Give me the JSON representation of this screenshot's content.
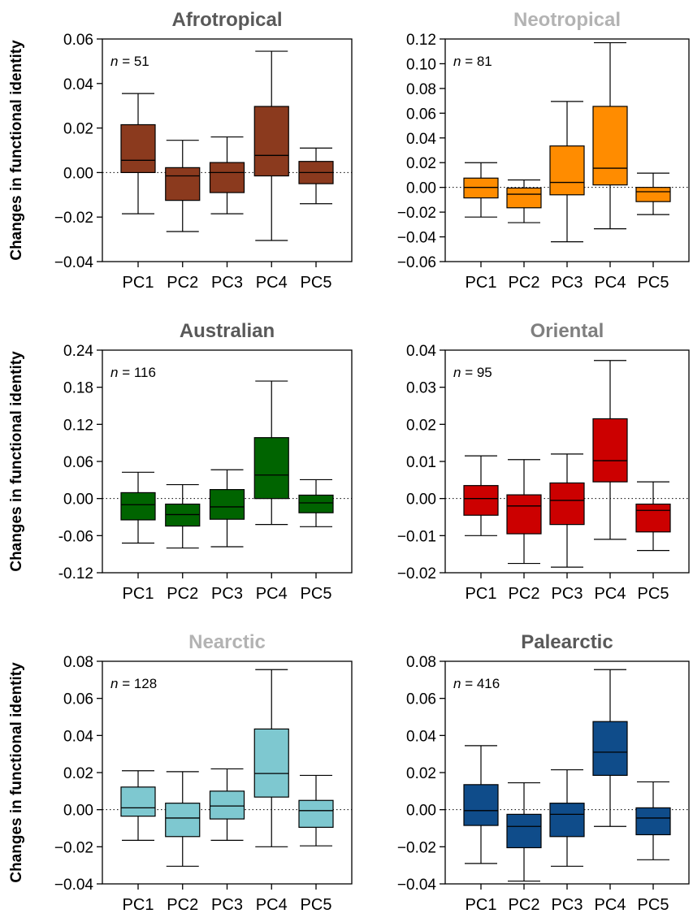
{
  "y_axis_label": "Changes in functional identity",
  "chart_data": [
    {
      "type": "boxplot",
      "title": "Afrotropical",
      "title_color": "#595959",
      "box_color": "#8B3A1E",
      "n_label": "51",
      "categories": [
        "PC1",
        "PC2",
        "PC3",
        "PC4",
        "PC5"
      ],
      "ylim": [
        -0.04,
        0.06
      ],
      "yticks": [
        -0.04,
        -0.02,
        0.0,
        0.02,
        0.04,
        0.06
      ],
      "ytick_labels": [
        "−0.04",
        "−0.02",
        "0.00",
        "0.02",
        "0.04",
        "0.06"
      ],
      "boxes": [
        {
          "category": "PC1",
          "min": -0.0185,
          "q1": 0.0,
          "median": 0.0055,
          "q3": 0.0215,
          "max": 0.0355
        },
        {
          "category": "PC2",
          "min": -0.0265,
          "q1": -0.0125,
          "median": -0.0015,
          "q3": 0.0022,
          "max": 0.0145
        },
        {
          "category": "PC3",
          "min": -0.0185,
          "q1": -0.009,
          "median": 0.0,
          "q3": 0.0045,
          "max": 0.016
        },
        {
          "category": "PC4",
          "min": -0.0305,
          "q1": -0.0015,
          "median": 0.0077,
          "q3": 0.0297,
          "max": 0.0545
        },
        {
          "category": "PC5",
          "min": -0.014,
          "q1": -0.005,
          "median": 0.0,
          "q3": 0.005,
          "max": 0.011
        }
      ]
    },
    {
      "type": "boxplot",
      "title": "Neotropical",
      "title_color": "#b3b3b3",
      "box_color": "#FF8C00",
      "n_label": "81",
      "categories": [
        "PC1",
        "PC2",
        "PC3",
        "PC4",
        "PC5"
      ],
      "ylim": [
        -0.06,
        0.12
      ],
      "yticks": [
        -0.06,
        -0.04,
        -0.02,
        0.0,
        0.02,
        0.04,
        0.06,
        0.08,
        0.1,
        0.12
      ],
      "ytick_labels": [
        "−0.06",
        "−0.04",
        "−0.02",
        "0.00",
        "0.02",
        "0.04",
        "0.06",
        "0.08",
        "0.10",
        "0.12"
      ],
      "boxes": [
        {
          "category": "PC1",
          "min": -0.024,
          "q1": -0.0085,
          "median": 0.0,
          "q3": 0.0075,
          "max": 0.02
        },
        {
          "category": "PC2",
          "min": -0.0285,
          "q1": -0.0165,
          "median": -0.0055,
          "q3": -0.0005,
          "max": 0.006
        },
        {
          "category": "PC3",
          "min": -0.044,
          "q1": -0.006,
          "median": 0.004,
          "q3": 0.0335,
          "max": 0.0695
        },
        {
          "category": "PC4",
          "min": -0.0335,
          "q1": 0.002,
          "median": 0.0155,
          "q3": 0.0655,
          "max": 0.117
        },
        {
          "category": "PC5",
          "min": -0.022,
          "q1": -0.0115,
          "median": -0.0035,
          "q3": 0.0,
          "max": 0.0115
        }
      ]
    },
    {
      "type": "boxplot",
      "title": "Australian",
      "title_color": "#595959",
      "box_color": "#006400",
      "n_label": "116",
      "categories": [
        "PC1",
        "PC2",
        "PC3",
        "PC4",
        "PC5"
      ],
      "ylim": [
        -0.12,
        0.24
      ],
      "yticks": [
        -0.12,
        -0.06,
        0.0,
        0.06,
        0.12,
        0.18,
        0.24
      ],
      "ytick_labels": [
        "-0.12",
        "-0.06",
        "0.00",
        "0.06",
        "0.12",
        "0.18",
        "0.24"
      ],
      "boxes": [
        {
          "category": "PC1",
          "min": -0.072,
          "q1": -0.0345,
          "median": -0.01,
          "q3": 0.0095,
          "max": 0.0425
        },
        {
          "category": "PC2",
          "min": -0.08,
          "q1": -0.0445,
          "median": -0.026,
          "q3": -0.009,
          "max": 0.0225
        },
        {
          "category": "PC3",
          "min": -0.078,
          "q1": -0.0335,
          "median": -0.0135,
          "q3": 0.0145,
          "max": 0.0465
        },
        {
          "category": "PC4",
          "min": -0.042,
          "q1": 0.0,
          "median": 0.038,
          "q3": 0.0985,
          "max": 0.19
        },
        {
          "category": "PC5",
          "min": -0.0455,
          "q1": -0.023,
          "median": -0.007,
          "q3": 0.0055,
          "max": 0.0305
        }
      ]
    },
    {
      "type": "boxplot",
      "title": "Oriental",
      "title_color": "#7f7f7f",
      "box_color": "#CC0000",
      "n_label": "95",
      "categories": [
        "PC1",
        "PC2",
        "PC3",
        "PC4",
        "PC5"
      ],
      "ylim": [
        -0.02,
        0.04
      ],
      "yticks": [
        -0.02,
        -0.01,
        0.0,
        0.01,
        0.02,
        0.03,
        0.04
      ],
      "ytick_labels": [
        "−0.02",
        "−0.01",
        "0.00",
        "0.01",
        "0.02",
        "0.03",
        "0.04"
      ],
      "boxes": [
        {
          "category": "PC1",
          "min": -0.01,
          "q1": -0.0045,
          "median": 0.0,
          "q3": 0.0035,
          "max": 0.0115
        },
        {
          "category": "PC2",
          "min": -0.0175,
          "q1": -0.0095,
          "median": -0.002,
          "q3": 0.001,
          "max": 0.0105
        },
        {
          "category": "PC3",
          "min": -0.0185,
          "q1": -0.007,
          "median": -0.0005,
          "q3": 0.0042,
          "max": 0.012
        },
        {
          "category": "PC4",
          "min": -0.011,
          "q1": 0.0045,
          "median": 0.0102,
          "q3": 0.0215,
          "max": 0.0372
        },
        {
          "category": "PC5",
          "min": -0.014,
          "q1": -0.009,
          "median": -0.0032,
          "q3": -0.0015,
          "max": 0.0045
        }
      ]
    },
    {
      "type": "boxplot",
      "title": "Nearctic",
      "title_color": "#b3b3b3",
      "box_color": "#7EC8D0",
      "n_label": "128",
      "categories": [
        "PC1",
        "PC2",
        "PC3",
        "PC4",
        "PC5"
      ],
      "ylim": [
        -0.04,
        0.08
      ],
      "yticks": [
        -0.04,
        -0.02,
        0.0,
        0.02,
        0.04,
        0.06,
        0.08
      ],
      "ytick_labels": [
        "−0.04",
        "−0.02",
        "0.00",
        "0.02",
        "0.04",
        "0.06",
        "0.08"
      ],
      "boxes": [
        {
          "category": "PC1",
          "min": -0.0165,
          "q1": -0.0035,
          "median": 0.001,
          "q3": 0.0122,
          "max": 0.021
        },
        {
          "category": "PC2",
          "min": -0.0305,
          "q1": -0.0145,
          "median": -0.0045,
          "q3": 0.0035,
          "max": 0.0205
        },
        {
          "category": "PC3",
          "min": -0.0165,
          "q1": -0.005,
          "median": 0.002,
          "q3": 0.01,
          "max": 0.022
        },
        {
          "category": "PC4",
          "min": -0.02,
          "q1": 0.0068,
          "median": 0.0195,
          "q3": 0.0435,
          "max": 0.0755
        },
        {
          "category": "PC5",
          "min": -0.0195,
          "q1": -0.0095,
          "median": -0.0005,
          "q3": 0.005,
          "max": 0.0185
        }
      ]
    },
    {
      "type": "boxplot",
      "title": "Palearctic",
      "title_color": "#595959",
      "box_color": "#0F4C8A",
      "n_label": "416",
      "categories": [
        "PC1",
        "PC2",
        "PC3",
        "PC4",
        "PC5"
      ],
      "ylim": [
        -0.04,
        0.08
      ],
      "yticks": [
        -0.04,
        -0.02,
        0.0,
        0.02,
        0.04,
        0.06,
        0.08
      ],
      "ytick_labels": [
        "−0.04",
        "−0.02",
        "0.00",
        "0.02",
        "0.04",
        "0.06",
        "0.08"
      ],
      "boxes": [
        {
          "category": "PC1",
          "min": -0.029,
          "q1": -0.0085,
          "median": -0.0005,
          "q3": 0.0135,
          "max": 0.0345
        },
        {
          "category": "PC2",
          "min": -0.0385,
          "q1": -0.0205,
          "median": -0.009,
          "q3": -0.0025,
          "max": 0.0145
        },
        {
          "category": "PC3",
          "min": -0.0305,
          "q1": -0.0145,
          "median": -0.0025,
          "q3": 0.0035,
          "max": 0.0215
        },
        {
          "category": "PC4",
          "min": -0.009,
          "q1": 0.0185,
          "median": 0.031,
          "q3": 0.0475,
          "max": 0.0755
        },
        {
          "category": "PC5",
          "min": -0.027,
          "q1": -0.0135,
          "median": -0.0045,
          "q3": 0.001,
          "max": 0.015
        }
      ]
    }
  ]
}
